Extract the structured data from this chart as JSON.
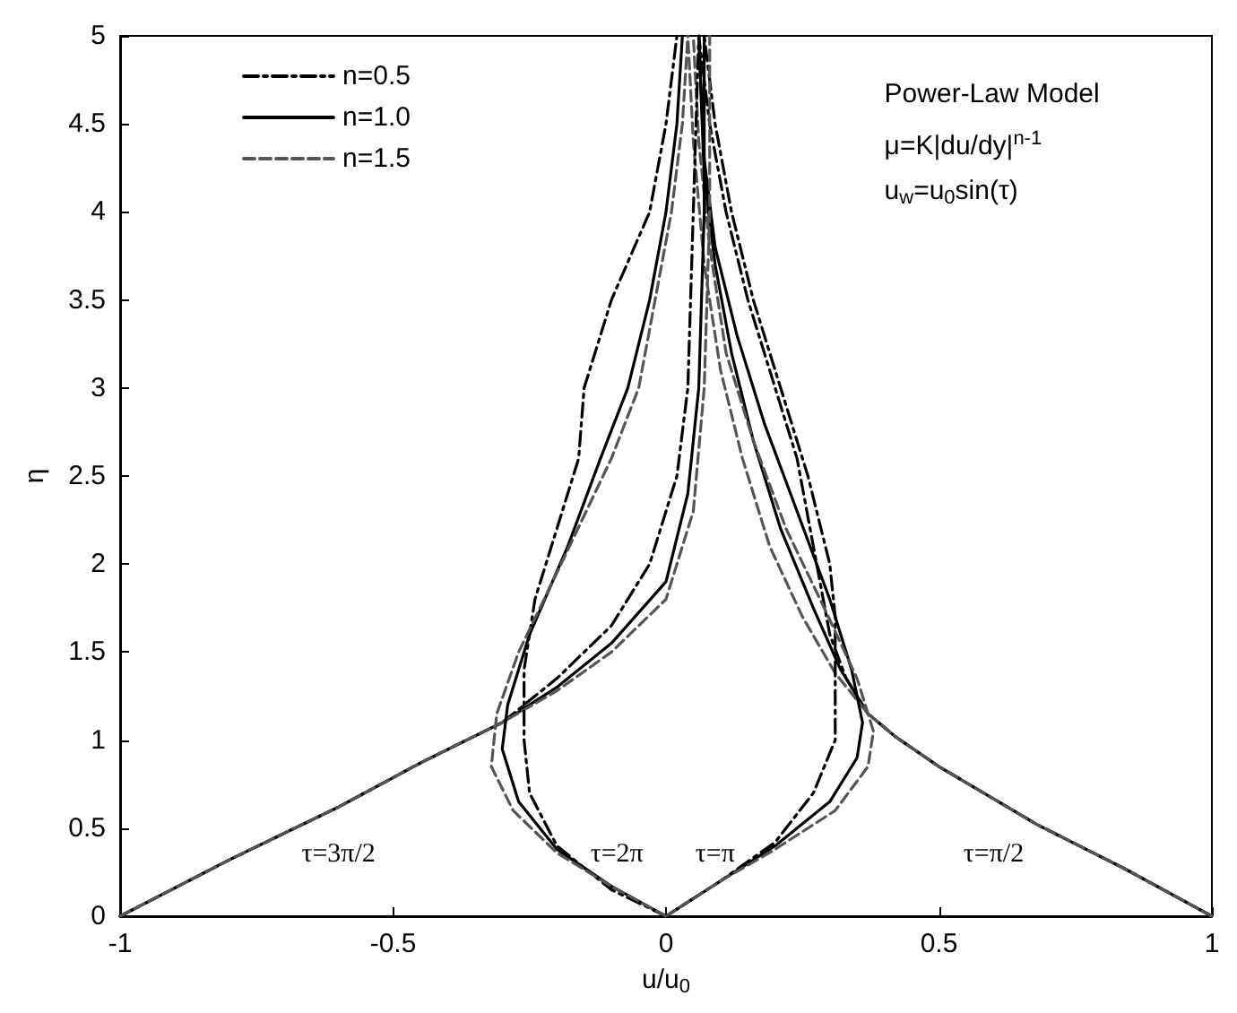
{
  "chart_data": {
    "type": "line",
    "xlabel": "u/u$_{0}$",
    "ylabel": "η",
    "xlim": [
      -1,
      1
    ],
    "xticks": [
      -1,
      -0.5,
      0,
      0.5,
      1
    ],
    "ylim": [
      0,
      5
    ],
    "yticks": [
      0,
      0.5,
      1,
      1.5,
      2,
      2.5,
      3,
      3.5,
      4,
      4.5,
      5
    ],
    "grid": false,
    "legend": "top left",
    "marker": "none",
    "annotations": [
      "Power-Law Model",
      "μ=K|du/dy|$^{n-1}$",
      "u$_{w}$=u$_{0}$sin(τ)",
      "τ=3π/2",
      "τ=2π",
      "τ=π",
      "τ=π/2"
    ],
    "series": [
      {
        "name": "n=0.5",
        "color": "#000000",
        "line_style": "dashdot",
        "x": [
          1,
          0.84,
          0.68,
          0.5,
          0.42,
          0.37,
          0.33,
          0.3,
          0.27,
          0.24,
          0.2,
          0.15,
          0.11,
          0.08,
          0.06
        ],
        "values": [
          0,
          0.27,
          0.52,
          0.85,
          1.02,
          1.15,
          1.35,
          1.6,
          2.1,
          2.6,
          3.0,
          3.5,
          4.0,
          4.5,
          5
        ]
      },
      {
        "name": "n=1.0",
        "color": "#000000",
        "line_style": "solid",
        "x": [
          1,
          0.84,
          0.68,
          0.5,
          0.42,
          0.37,
          0.32,
          0.27,
          0.21,
          0.16,
          0.12,
          0.09,
          0.07,
          0.06
        ],
        "values": [
          0,
          0.27,
          0.52,
          0.85,
          1.02,
          1.15,
          1.4,
          1.75,
          2.2,
          2.7,
          3.2,
          3.7,
          4.2,
          5
        ]
      },
      {
        "name": "n=1.5",
        "color": "#555555",
        "line_style": "dashed",
        "x": [
          1,
          0.84,
          0.68,
          0.5,
          0.42,
          0.37,
          0.31,
          0.25,
          0.19,
          0.14,
          0.1,
          0.07,
          0.05,
          0.04
        ],
        "values": [
          0,
          0.27,
          0.52,
          0.85,
          1.02,
          1.15,
          1.38,
          1.7,
          2.1,
          2.6,
          3.1,
          3.7,
          4.4,
          5
        ]
      },
      {
        "color": "#000000",
        "line_style": "dashdot",
        "x": [
          0,
          0.1,
          0.2,
          0.27,
          0.31,
          0.31,
          0.31,
          0.3,
          0.26,
          0.21,
          0.16,
          0.12,
          0.09,
          0.07
        ],
        "values": [
          0,
          0.2,
          0.42,
          0.7,
          1.0,
          1.3,
          1.7,
          2.0,
          2.5,
          3.0,
          3.5,
          4.0,
          4.5,
          5
        ]
      },
      {
        "color": "#000000",
        "line_style": "solid",
        "x": [
          0,
          0.1,
          0.2,
          0.3,
          0.35,
          0.36,
          0.34,
          0.3,
          0.24,
          0.18,
          0.13,
          0.09,
          0.07,
          0.06
        ],
        "values": [
          0,
          0.2,
          0.4,
          0.65,
          0.9,
          1.1,
          1.4,
          1.8,
          2.3,
          2.8,
          3.3,
          3.8,
          4.3,
          5
        ]
      },
      {
        "color": "#555555",
        "line_style": "dashed",
        "x": [
          0,
          0.1,
          0.2,
          0.31,
          0.37,
          0.38,
          0.35,
          0.29,
          0.22,
          0.16,
          0.11,
          0.08,
          0.06,
          0.05
        ],
        "values": [
          0,
          0.2,
          0.38,
          0.6,
          0.85,
          1.05,
          1.35,
          1.75,
          2.2,
          2.7,
          3.2,
          3.8,
          4.4,
          5
        ]
      },
      {
        "color": "#000000",
        "line_style": "dashdot",
        "x": [
          -1,
          -0.8,
          -0.6,
          -0.45,
          -0.3,
          -0.2,
          -0.1,
          -0.03,
          0.02,
          0.04,
          0.05,
          0.06
        ],
        "values": [
          0,
          0.32,
          0.62,
          0.87,
          1.1,
          1.35,
          1.65,
          2.0,
          2.5,
          3.0,
          4.0,
          5
        ]
      },
      {
        "color": "#000000",
        "line_style": "solid",
        "x": [
          -1,
          -0.8,
          -0.6,
          -0.45,
          -0.3,
          -0.2,
          -0.1,
          0,
          0.04,
          0.06,
          0.07,
          0.07
        ],
        "values": [
          0,
          0.32,
          0.62,
          0.87,
          1.1,
          1.3,
          1.55,
          1.9,
          2.4,
          3.0,
          4.0,
          5
        ]
      },
      {
        "color": "#555555",
        "line_style": "dashed",
        "x": [
          -1,
          -0.8,
          -0.6,
          -0.45,
          -0.3,
          -0.2,
          -0.1,
          0,
          0.05,
          0.07,
          0.08,
          0.08
        ],
        "values": [
          0,
          0.32,
          0.62,
          0.87,
          1.1,
          1.28,
          1.5,
          1.8,
          2.3,
          3.0,
          4.0,
          5
        ]
      },
      {
        "color": "#000000",
        "line_style": "dashdot",
        "x": [
          0,
          -0.1,
          -0.2,
          -0.25,
          -0.26,
          -0.26,
          -0.24,
          -0.2,
          -0.16,
          -0.15,
          -0.1,
          -0.03,
          0,
          0.02
        ],
        "values": [
          0,
          0.15,
          0.4,
          0.7,
          1.0,
          1.4,
          1.8,
          2.2,
          2.6,
          3.0,
          3.5,
          4.0,
          4.5,
          5
        ]
      },
      {
        "color": "#000000",
        "line_style": "solid",
        "x": [
          0,
          -0.1,
          -0.2,
          -0.27,
          -0.3,
          -0.29,
          -0.25,
          -0.18,
          -0.12,
          -0.07,
          -0.03,
          0,
          0.02,
          0.03
        ],
        "values": [
          0,
          0.17,
          0.38,
          0.65,
          0.95,
          1.2,
          1.6,
          2.1,
          2.6,
          3.0,
          3.5,
          4.0,
          4.5,
          5
        ]
      },
      {
        "color": "#555555",
        "line_style": "dashed",
        "x": [
          0,
          -0.1,
          -0.2,
          -0.28,
          -0.32,
          -0.31,
          -0.27,
          -0.2,
          -0.1,
          -0.05,
          -0.02,
          0.01,
          0.03,
          0.04
        ],
        "values": [
          0,
          0.17,
          0.36,
          0.6,
          0.85,
          1.15,
          1.5,
          1.95,
          2.6,
          3.0,
          3.5,
          4.0,
          4.5,
          5
        ]
      }
    ]
  }
}
